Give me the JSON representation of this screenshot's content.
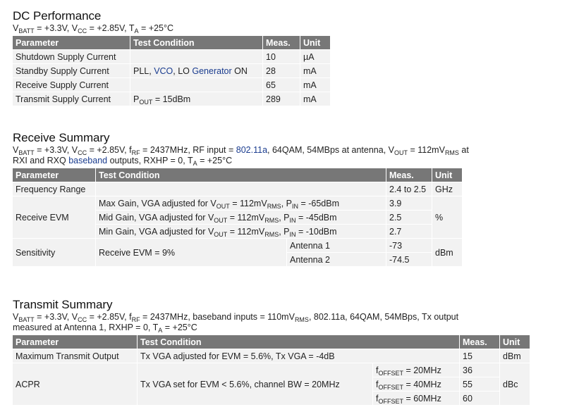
{
  "dc": {
    "title": "DC Performance",
    "cond": {
      "v1": "V",
      "s1": "BATT",
      "t1": " = +3.3V, V",
      "s2": "CC",
      "t2": " = +2.85V, T",
      "s3": "A",
      "t3": " = +25°C"
    },
    "headers": [
      "Parameter",
      "Test Condition",
      "Meas.",
      "Unit"
    ],
    "rows": [
      {
        "param": "Shutdown Supply Current",
        "cond": "",
        "meas": "10",
        "unit": "µA"
      },
      {
        "param": "Standby Supply Current",
        "cond_pre": "PLL, ",
        "cond_link1": "VCO",
        "cond_mid": ", LO ",
        "cond_link2": "Generator",
        "cond_post": " ON",
        "meas": "28",
        "unit": "mA"
      },
      {
        "param": "Receive Supply Current",
        "cond": "",
        "meas": "65",
        "unit": "mA"
      },
      {
        "param": "Transmit Supply Current",
        "cond_v": "P",
        "cond_sub": "OUT",
        "cond_rest": " = 15dBm",
        "meas": "289",
        "unit": "mA"
      }
    ]
  },
  "rx": {
    "title": "Receive Summary",
    "cond": {
      "a": "V",
      "as": "BATT",
      "b": " = +3.3V, V",
      "bs": "CC",
      "c": " = +2.85V, f",
      "cs": "RF",
      "d": " = 2437MHz, RF input = ",
      "link1": "802.11a",
      "e": ", 64QAM, 54MBps at antenna, V",
      "es": "OUT",
      "f": " = 112mV",
      "fs": "RMS",
      "g": " at",
      "h": "RXI and RXQ ",
      "link2": "baseband",
      "i": " outputs, RXHP = 0, T",
      "is": "A",
      "j": " = +25°C"
    },
    "headers": [
      "Parameter",
      "Test Condition",
      "Meas.",
      "Unit"
    ],
    "freq": {
      "param": "Frequency Range",
      "meas": "2.4 to 2.5",
      "unit": "GHz"
    },
    "evm": {
      "param": "Receive EVM",
      "unit": "%",
      "rows": [
        {
          "pre": "Max Gain, VGA adjusted for V",
          "sub1": "OUT",
          "mid": " = 112mV",
          "sub2": "RMS",
          "mid2": ", P",
          "sub3": "IN",
          "post": " = -65dBm",
          "meas": "3.9"
        },
        {
          "pre": "Mid Gain, VGA adjusted for V",
          "sub1": "OUT",
          "mid": " = 112mV",
          "sub2": "RMS",
          "mid2": ", P",
          "sub3": "IN",
          "post": " = -45dBm",
          "meas": "2.5"
        },
        {
          "pre": "Min Gain, VGA adjusted for V",
          "sub1": "OUT",
          "mid": " = 112mV",
          "sub2": "RMS",
          "mid2": ", P",
          "sub3": "IN",
          "post": " = -10dBm",
          "meas": "2.7"
        }
      ]
    },
    "sens": {
      "param": "Sensitivity",
      "cond": "Receive EVM = 9%",
      "unit": "dBm",
      "rows": [
        {
          "ant": "Antenna 1",
          "meas": "-73"
        },
        {
          "ant": "Antenna 2",
          "meas": "-74.5"
        }
      ]
    }
  },
  "tx": {
    "title": "Transmit Summary",
    "cond": {
      "a": "V",
      "as": "BATT",
      "b": " = +3.3V, V",
      "bs": "CC",
      "c": " = +2.85V, f",
      "cs": "RF",
      "d": " = 2437MHz, baseband inputs = 110mV",
      "ds": "RMS",
      "e": ", 802.11a, 64QAM, 54MBps, Tx output",
      "f": "measured at Antenna 1, RXHP = 0, T",
      "fs": "A",
      "g": " = +25°C"
    },
    "headers": [
      "Parameter",
      "Test Condition",
      "Meas.",
      "Unit"
    ],
    "max": {
      "param": "Maximum Transmit Output",
      "cond": "Tx VGA adjusted for EVM = 5.6%, Tx VGA = -4dB",
      "meas": "15",
      "unit": "dBm"
    },
    "acpr": {
      "param": "ACPR",
      "cond": "Tx VGA set for EVM < 5.6%, channel BW = 20MHz",
      "unit": "dBc",
      "rows": [
        {
          "f": "f",
          "fs": "OFFSET",
          "v": " = 20MHz",
          "meas": "36"
        },
        {
          "f": "f",
          "fs": "OFFSET",
          "v": " = 40MHz",
          "meas": "55"
        },
        {
          "f": "f",
          "fs": "OFFSET",
          "v": " = 60MHz",
          "meas": "60"
        }
      ]
    }
  }
}
